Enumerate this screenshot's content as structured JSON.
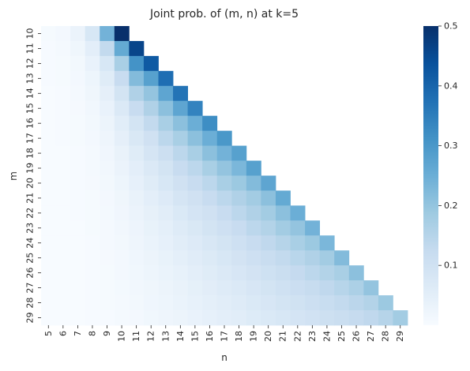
{
  "chart_data": {
    "type": "heatmap",
    "title": "Joint prob. of (m, n) at k=5",
    "xlabel": "n",
    "ylabel": "m",
    "x_categories": [
      "5",
      "6",
      "7",
      "8",
      "9",
      "10",
      "11",
      "12",
      "13",
      "14",
      "15",
      "16",
      "17",
      "18",
      "19",
      "20",
      "21",
      "22",
      "23",
      "24",
      "25",
      "26",
      "27",
      "28",
      "29"
    ],
    "y_categories": [
      "10",
      "11",
      "12",
      "13",
      "14",
      "15",
      "16",
      "17",
      "18",
      "19",
      "20",
      "21",
      "22",
      "23",
      "24",
      "25",
      "26",
      "27",
      "28",
      "29"
    ],
    "mask": "cells with n > m are blank",
    "colormap": "Blues",
    "vmin": 0,
    "vmax": 0.5,
    "colorbar_ticks": [
      0.1,
      0.2,
      0.3,
      0.4,
      0.5
    ],
    "colorbar_tick_labels": [
      "0.1",
      "0.2",
      "0.3",
      "0.4",
      "0.5"
    ],
    "colors": {
      "low": "#f7fbff",
      "high": "#08306b"
    },
    "values": [
      [
        0.005,
        0.01,
        0.03,
        0.08,
        0.24,
        0.5
      ],
      [
        0.003,
        0.007,
        0.02,
        0.05,
        0.13,
        0.26,
        0.46
      ],
      [
        0.002,
        0.005,
        0.013,
        0.035,
        0.08,
        0.17,
        0.31,
        0.42
      ],
      [
        0.002,
        0.004,
        0.01,
        0.025,
        0.06,
        0.12,
        0.22,
        0.28,
        0.38
      ],
      [
        0.001,
        0.003,
        0.008,
        0.02,
        0.045,
        0.09,
        0.16,
        0.2,
        0.27,
        0.37
      ],
      [
        0.001,
        0.002,
        0.006,
        0.015,
        0.035,
        0.07,
        0.12,
        0.16,
        0.21,
        0.27,
        0.34
      ],
      [
        0.001,
        0.002,
        0.005,
        0.012,
        0.028,
        0.055,
        0.09,
        0.13,
        0.17,
        0.21,
        0.25,
        0.32
      ],
      [
        0.001,
        0.002,
        0.004,
        0.01,
        0.022,
        0.045,
        0.075,
        0.1,
        0.14,
        0.17,
        0.21,
        0.25,
        0.3
      ],
      [
        0.001,
        0.001,
        0.003,
        0.008,
        0.018,
        0.036,
        0.06,
        0.085,
        0.11,
        0.14,
        0.17,
        0.21,
        0.24,
        0.28
      ],
      [
        0.0,
        0.001,
        0.003,
        0.007,
        0.015,
        0.03,
        0.05,
        0.07,
        0.09,
        0.12,
        0.14,
        0.17,
        0.2,
        0.23,
        0.28
      ],
      [
        0.0,
        0.001,
        0.002,
        0.006,
        0.013,
        0.025,
        0.042,
        0.06,
        0.08,
        0.1,
        0.12,
        0.14,
        0.17,
        0.19,
        0.22,
        0.27
      ],
      [
        0.0,
        0.001,
        0.002,
        0.005,
        0.011,
        0.021,
        0.036,
        0.05,
        0.065,
        0.085,
        0.1,
        0.12,
        0.14,
        0.16,
        0.18,
        0.21,
        0.26
      ],
      [
        0.0,
        0.001,
        0.002,
        0.004,
        0.009,
        0.018,
        0.03,
        0.043,
        0.056,
        0.072,
        0.088,
        0.1,
        0.12,
        0.14,
        0.16,
        0.18,
        0.21,
        0.25
      ],
      [
        0.0,
        0.0,
        0.001,
        0.004,
        0.008,
        0.015,
        0.026,
        0.037,
        0.048,
        0.062,
        0.076,
        0.09,
        0.105,
        0.12,
        0.14,
        0.155,
        0.18,
        0.2,
        0.24
      ],
      [
        0.0,
        0.0,
        0.001,
        0.003,
        0.007,
        0.013,
        0.022,
        0.032,
        0.042,
        0.054,
        0.066,
        0.078,
        0.09,
        0.105,
        0.12,
        0.135,
        0.15,
        0.17,
        0.19,
        0.23
      ],
      [
        0.0,
        0.0,
        0.001,
        0.003,
        0.006,
        0.011,
        0.019,
        0.028,
        0.037,
        0.047,
        0.058,
        0.068,
        0.08,
        0.092,
        0.105,
        0.118,
        0.13,
        0.145,
        0.16,
        0.18,
        0.22
      ],
      [
        0.0,
        0.0,
        0.001,
        0.002,
        0.005,
        0.01,
        0.017,
        0.024,
        0.032,
        0.041,
        0.05,
        0.06,
        0.07,
        0.081,
        0.092,
        0.103,
        0.115,
        0.127,
        0.14,
        0.155,
        0.17,
        0.21
      ],
      [
        0.0,
        0.0,
        0.001,
        0.002,
        0.004,
        0.009,
        0.015,
        0.021,
        0.028,
        0.036,
        0.044,
        0.053,
        0.062,
        0.071,
        0.081,
        0.091,
        0.101,
        0.112,
        0.123,
        0.135,
        0.148,
        0.165,
        0.2
      ],
      [
        0.0,
        0.0,
        0.001,
        0.002,
        0.004,
        0.008,
        0.013,
        0.019,
        0.025,
        0.032,
        0.039,
        0.047,
        0.055,
        0.063,
        0.072,
        0.081,
        0.09,
        0.099,
        0.109,
        0.119,
        0.13,
        0.142,
        0.155,
        0.19
      ],
      [
        0.0,
        0.0,
        0.0,
        0.002,
        0.003,
        0.007,
        0.011,
        0.017,
        0.022,
        0.028,
        0.035,
        0.042,
        0.049,
        0.056,
        0.064,
        0.072,
        0.08,
        0.088,
        0.097,
        0.106,
        0.115,
        0.125,
        0.135,
        0.15,
        0.18
      ]
    ]
  }
}
